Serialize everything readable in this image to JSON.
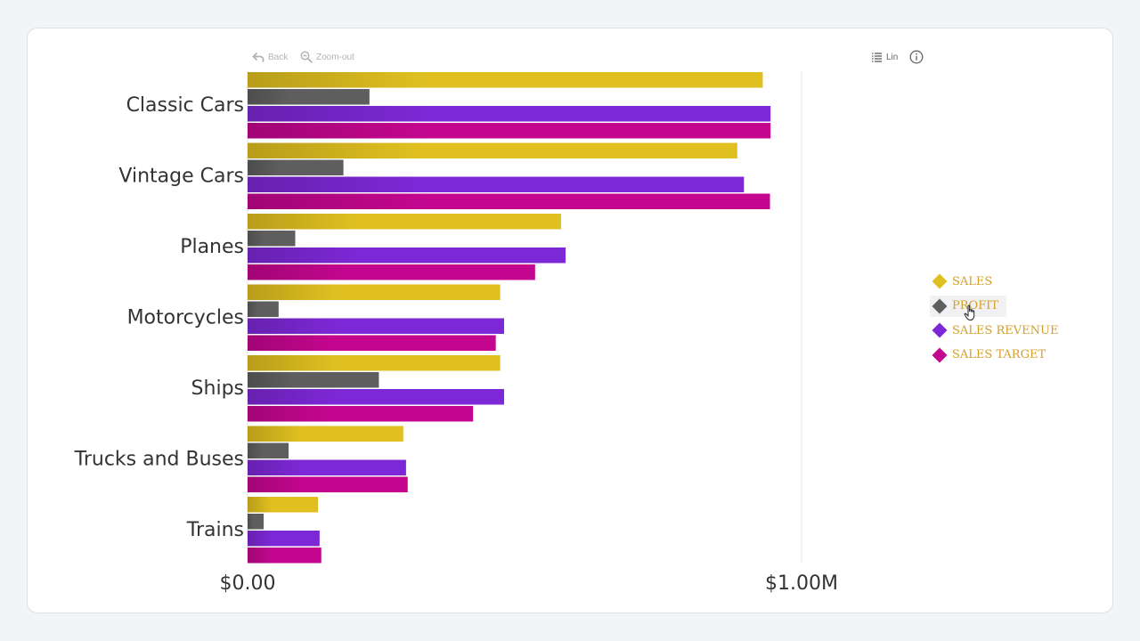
{
  "toolbar": {
    "back_label": "Back",
    "zoom_out_label": "Zoom-out",
    "scale_label": "Lin",
    "icons": [
      "back-arrow-icon",
      "zoom-out-icon",
      "list-icon",
      "info-icon"
    ]
  },
  "colors": {
    "sales": "#e0c020",
    "profit": "#5e5e5e",
    "sales_revenue": "#7d28d6",
    "sales_target": "#c4068f",
    "legend_text": "#d4a02a"
  },
  "chart_data": {
    "type": "bar",
    "orientation": "horizontal",
    "categories": [
      "Classic Cars",
      "Vintage Cars",
      "Planes",
      "Motorcycles",
      "Ships",
      "Trucks and Buses",
      "Trains"
    ],
    "series": [
      {
        "name": "SALES",
        "values": [
          930000,
          884000,
          566000,
          456000,
          456000,
          281000,
          127000
        ]
      },
      {
        "name": "PROFIT",
        "values": [
          220000,
          173000,
          86000,
          56000,
          237000,
          74000,
          29000
        ]
      },
      {
        "name": "SALES REVENUE",
        "values": [
          944000,
          896000,
          574000,
          463000,
          463000,
          286000,
          130000
        ]
      },
      {
        "name": "SALES TARGET",
        "values": [
          944000,
          943000,
          519000,
          448000,
          407000,
          289000,
          133000
        ]
      }
    ],
    "x_ticks": [
      "$0.00",
      "$1.00M"
    ],
    "xlim": [
      0,
      1000000
    ],
    "grid": true,
    "legend_position": "right"
  }
}
